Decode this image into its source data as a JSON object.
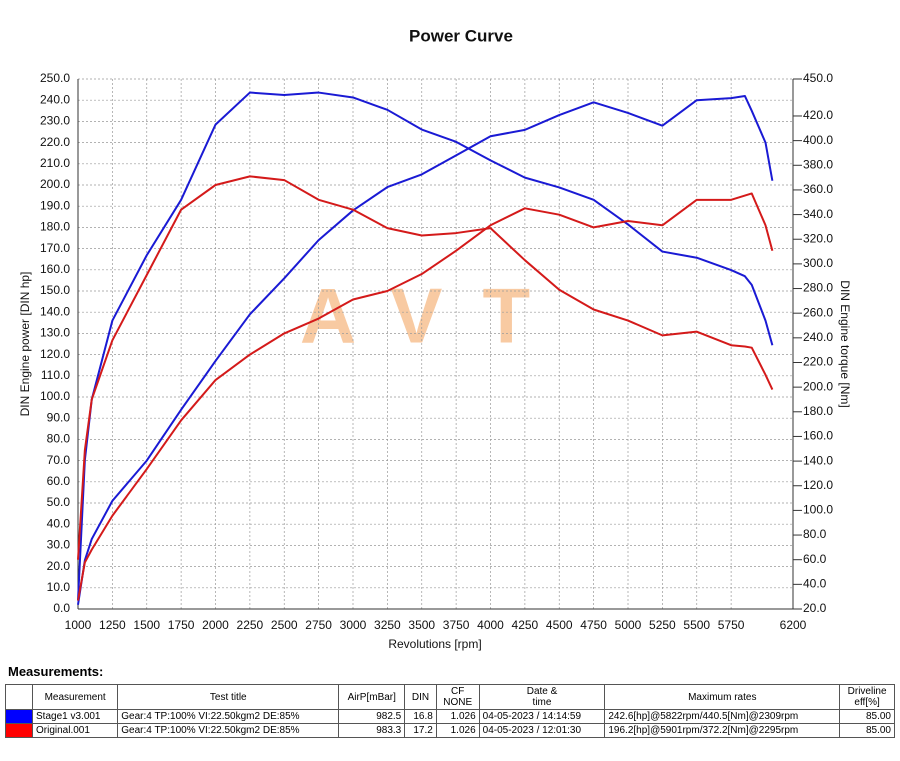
{
  "chart_data": {
    "type": "line",
    "title": "Power Curve",
    "xlabel": "Revolutions [rpm]",
    "ylabel": "DIN Engine power [DIN hp]",
    "y2label": "DIN Engine torque [Nm]",
    "watermark": "AVT",
    "grid": true,
    "x": [
      1000,
      1050,
      1100,
      1250,
      1500,
      1750,
      2000,
      2250,
      2500,
      2750,
      3000,
      3250,
      3500,
      3750,
      4000,
      4250,
      4500,
      4750,
      5000,
      5250,
      5500,
      5750,
      5850,
      5900,
      6000,
      6050
    ],
    "xlim": [
      1000,
      6200
    ],
    "xticks": [
      1000,
      1250,
      1500,
      1750,
      2000,
      2250,
      2500,
      2750,
      3000,
      3250,
      3500,
      3750,
      4000,
      4250,
      4500,
      4750,
      5000,
      5250,
      5500,
      5750,
      6200
    ],
    "ylim": [
      0,
      250
    ],
    "yticks": [
      {
        "value": 0,
        "label": "0.0"
      },
      {
        "value": 10,
        "label": "10.0"
      },
      {
        "value": 20,
        "label": "20.0"
      },
      {
        "value": 30,
        "label": "30.0"
      },
      {
        "value": 40,
        "label": "40.0"
      },
      {
        "value": 50,
        "label": "50.0"
      },
      {
        "value": 60,
        "label": "60.0"
      },
      {
        "value": 70,
        "label": "70.0"
      },
      {
        "value": 80,
        "label": "80.0"
      },
      {
        "value": 90,
        "label": "90.0"
      },
      {
        "value": 100,
        "label": "100.0"
      },
      {
        "value": 110,
        "label": "110.0"
      },
      {
        "value": 120,
        "label": "120.0"
      },
      {
        "value": 130,
        "label": "130.0"
      },
      {
        "value": 140,
        "label": "140.0"
      },
      {
        "value": 150,
        "label": "150.0"
      },
      {
        "value": 160,
        "label": "160.0"
      },
      {
        "value": 170,
        "label": "170.0"
      },
      {
        "value": 180,
        "label": "180.0"
      },
      {
        "value": 190,
        "label": "190.0"
      },
      {
        "value": 200,
        "label": "200.0"
      },
      {
        "value": 210,
        "label": "210.0"
      },
      {
        "value": 220,
        "label": "220.0"
      },
      {
        "value": 230,
        "label": "230.0"
      },
      {
        "value": 240,
        "label": "240.0"
      },
      {
        "value": 250,
        "label": "250.0"
      }
    ],
    "y2lim": [
      20,
      450
    ],
    "y2ticks": [
      {
        "value": 20,
        "label": "20.0"
      },
      {
        "value": 40,
        "label": "40.0"
      },
      {
        "value": 60,
        "label": "60.0"
      },
      {
        "value": 80,
        "label": "80.0"
      },
      {
        "value": 100,
        "label": "100.0"
      },
      {
        "value": 120,
        "label": "120.0"
      },
      {
        "value": 140,
        "label": "140.0"
      },
      {
        "value": 160,
        "label": "160.0"
      },
      {
        "value": 180,
        "label": "180.0"
      },
      {
        "value": 200,
        "label": "200.0"
      },
      {
        "value": 220,
        "label": "220.0"
      },
      {
        "value": 240,
        "label": "240.0"
      },
      {
        "value": 260,
        "label": "260.0"
      },
      {
        "value": 280,
        "label": "280.0"
      },
      {
        "value": 300,
        "label": "300.0"
      },
      {
        "value": 320,
        "label": "320.0"
      },
      {
        "value": 340,
        "label": "340.0"
      },
      {
        "value": 360,
        "label": "360.0"
      },
      {
        "value": 380,
        "label": "380.0"
      },
      {
        "value": 400,
        "label": "400.0"
      },
      {
        "value": 420,
        "label": "420.0"
      },
      {
        "value": 450,
        "label": "450.0"
      }
    ],
    "series": [
      {
        "color": "#1a1ad4",
        "axis": "y",
        "values": [
          2,
          23,
          33,
          51,
          70,
          94,
          117,
          139,
          156,
          174,
          188,
          199,
          205,
          214,
          223,
          226,
          233,
          239,
          234,
          228,
          240,
          241,
          242,
          235,
          220,
          202
        ]
      },
      {
        "color": "#1a1ad4",
        "axis": "y2",
        "values": [
          27,
          141,
          190,
          254,
          307,
          352,
          413,
          439,
          437,
          439,
          435,
          425,
          409,
          399,
          384,
          370,
          362,
          352,
          332,
          310,
          305,
          295,
          290,
          283,
          254,
          234
        ]
      },
      {
        "color": "#d41a1a",
        "axis": "y",
        "values": [
          4,
          22,
          28,
          44,
          66,
          89,
          108,
          120,
          130,
          137,
          146,
          150,
          158,
          169,
          181,
          189,
          186,
          180,
          183,
          181,
          193,
          193,
          195,
          196,
          181,
          169
        ]
      },
      {
        "color": "#d41a1a",
        "axis": "y2",
        "values": [
          60,
          149,
          190,
          238,
          291,
          344,
          364,
          371,
          368,
          352,
          344,
          329,
          323,
          325,
          329,
          303,
          279,
          263,
          254,
          242,
          245,
          234,
          233,
          232,
          210,
          198
        ]
      }
    ]
  },
  "table": {
    "title": "Measurements:",
    "header": [
      "Measurement",
      "Test title",
      "AirP[mBar]",
      "DIN",
      "CF\nNONE",
      "Date &\ntime",
      "Maximum rates",
      "Driveline\neff[%]"
    ],
    "rows": [
      {
        "color": "#0000ff",
        "cells": [
          "Stage1 v3.001",
          "Gear:4 TP:100% VI:22.50kgm2 DE:85%",
          "982.5",
          "16.8",
          "1.026",
          "04-05-2023 / 14:14:59",
          "242.6[hp]@5822rpm/440.5[Nm]@2309rpm",
          "85.00"
        ]
      },
      {
        "color": "#ff0000",
        "cells": [
          "Original.001",
          "Gear:4 TP:100% VI:22.50kgm2 DE:85%",
          "983.3",
          "17.2",
          "1.026",
          "04-05-2023 / 12:01:30",
          "196.2[hp]@5901rpm/372.2[Nm]@2295rpm",
          "85.00"
        ]
      }
    ]
  }
}
